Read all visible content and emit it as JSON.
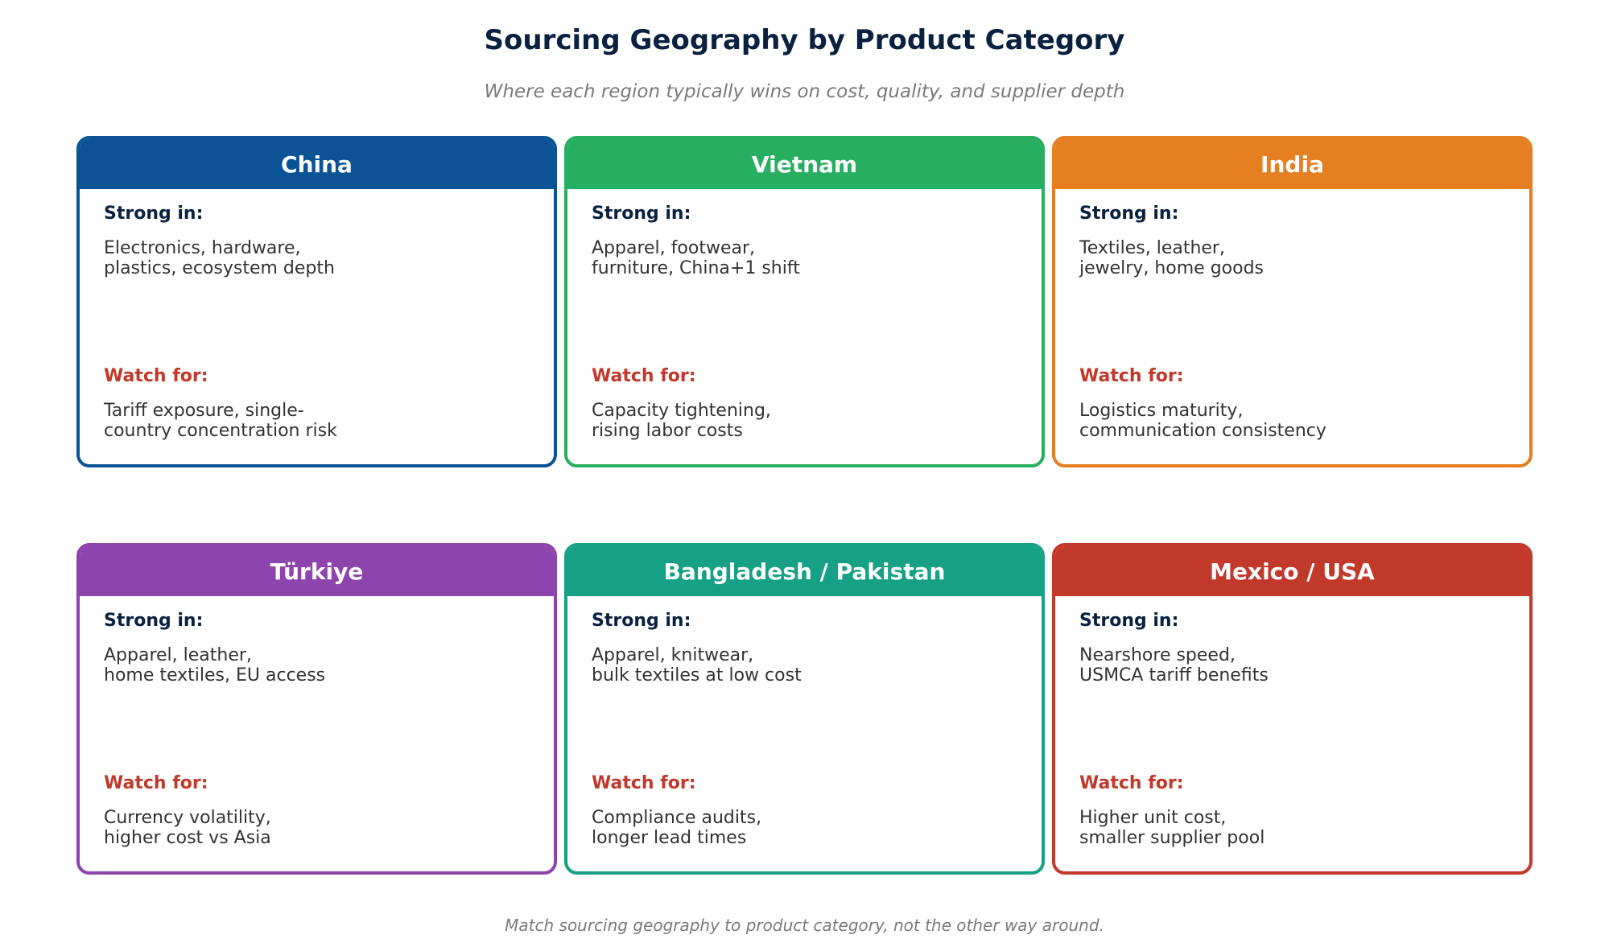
{
  "title": "Sourcing Geography by Product Category",
  "subtitle": "Where each region typically wins on cost, quality, and supplier depth",
  "strong_label": "Strong in:",
  "watch_label": "Watch for:",
  "footer": "Match sourcing geography to product category, not the other way around.",
  "cards": [
    {
      "name": "China",
      "color": "#0b5394",
      "strong": "Electronics, hardware,\nplastics, ecosystem depth",
      "watch": "Tariff exposure, single-\ncountry concentration risk"
    },
    {
      "name": "Vietnam",
      "color": "#27ae60",
      "strong": "Apparel, footwear,\nfurniture, China+1 shift",
      "watch": "Capacity tightening,\nrising labor costs"
    },
    {
      "name": "India",
      "color": "#e67e22",
      "strong": "Textiles, leather,\njewelry, home goods",
      "watch": "Logistics maturity,\ncommunication consistency"
    },
    {
      "name": "Türkiye",
      "color": "#8e44ad",
      "strong": "Apparel, leather,\nhome textiles, EU access",
      "watch": "Currency volatility,\nhigher cost vs Asia"
    },
    {
      "name": "Bangladesh / Pakistan",
      "color": "#16a085",
      "strong": "Apparel, knitwear,\nbulk textiles at low cost",
      "watch": "Compliance audits,\nlonger lead times"
    },
    {
      "name": "Mexico / USA",
      "color": "#c0392b",
      "strong": "Nearshore speed,\nUSMCA tariff benefits",
      "watch": "Higher unit cost,\nsmaller supplier pool"
    }
  ]
}
